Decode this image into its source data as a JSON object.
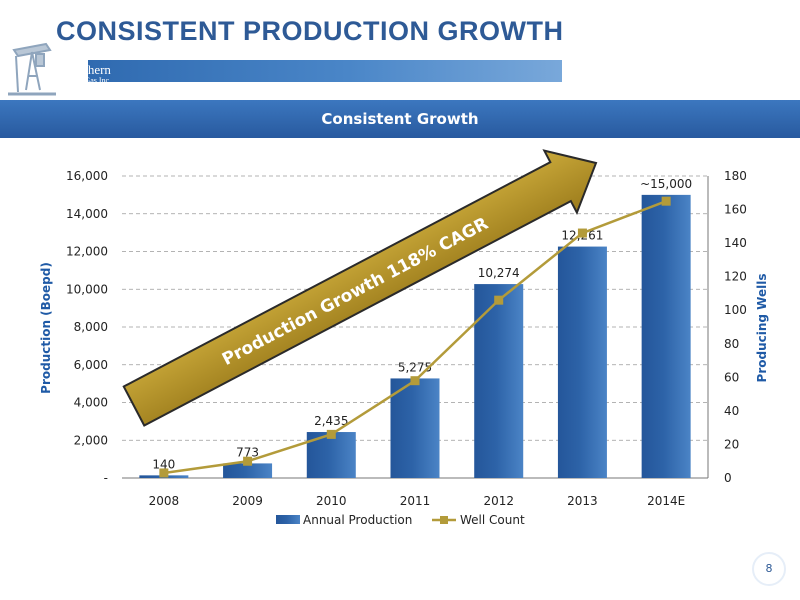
{
  "slide": {
    "title": "CONSISTENT PRODUCTION GROWTH",
    "banner": "Consistent Growth",
    "page_number": "8",
    "logo": {
      "line1": "Northern",
      "line2": "Oil & Gas Inc."
    }
  },
  "colors": {
    "title": "#2e5a96",
    "bar": "#2d63a8",
    "line": "#b39b3a",
    "arrow": "#b8962a",
    "axis_label": "#1f5aa6"
  },
  "chart_data": {
    "type": "bar",
    "categories": [
      "2008",
      "2009",
      "2010",
      "2011",
      "2012",
      "2013",
      "2014E"
    ],
    "series": [
      {
        "name": "Annual Production",
        "type": "bar",
        "axis": "left",
        "values": [
          140,
          773,
          2435,
          5275,
          10274,
          12261,
          15000
        ],
        "labels": [
          "140",
          "773",
          "2,435",
          "5,275",
          "10,274",
          "12,261",
          "~15,000"
        ]
      },
      {
        "name": "Well Count",
        "type": "line",
        "axis": "right",
        "values": [
          3,
          10,
          26,
          58,
          106,
          146,
          165
        ]
      }
    ],
    "ylabel": "Production (Boepd)",
    "y2label": "Producing Wells",
    "ylim": [
      0,
      16000
    ],
    "y2lim": [
      0,
      180
    ],
    "yticks": [
      "-",
      "2,000",
      "4,000",
      "6,000",
      "8,000",
      "10,000",
      "12,000",
      "14,000",
      "16,000"
    ],
    "y2ticks": [
      "0",
      "20",
      "40",
      "60",
      "80",
      "100",
      "120",
      "140",
      "160",
      "180"
    ],
    "annotation": "Production Growth 118% CAGR",
    "grid": true,
    "legend": "bottom"
  }
}
